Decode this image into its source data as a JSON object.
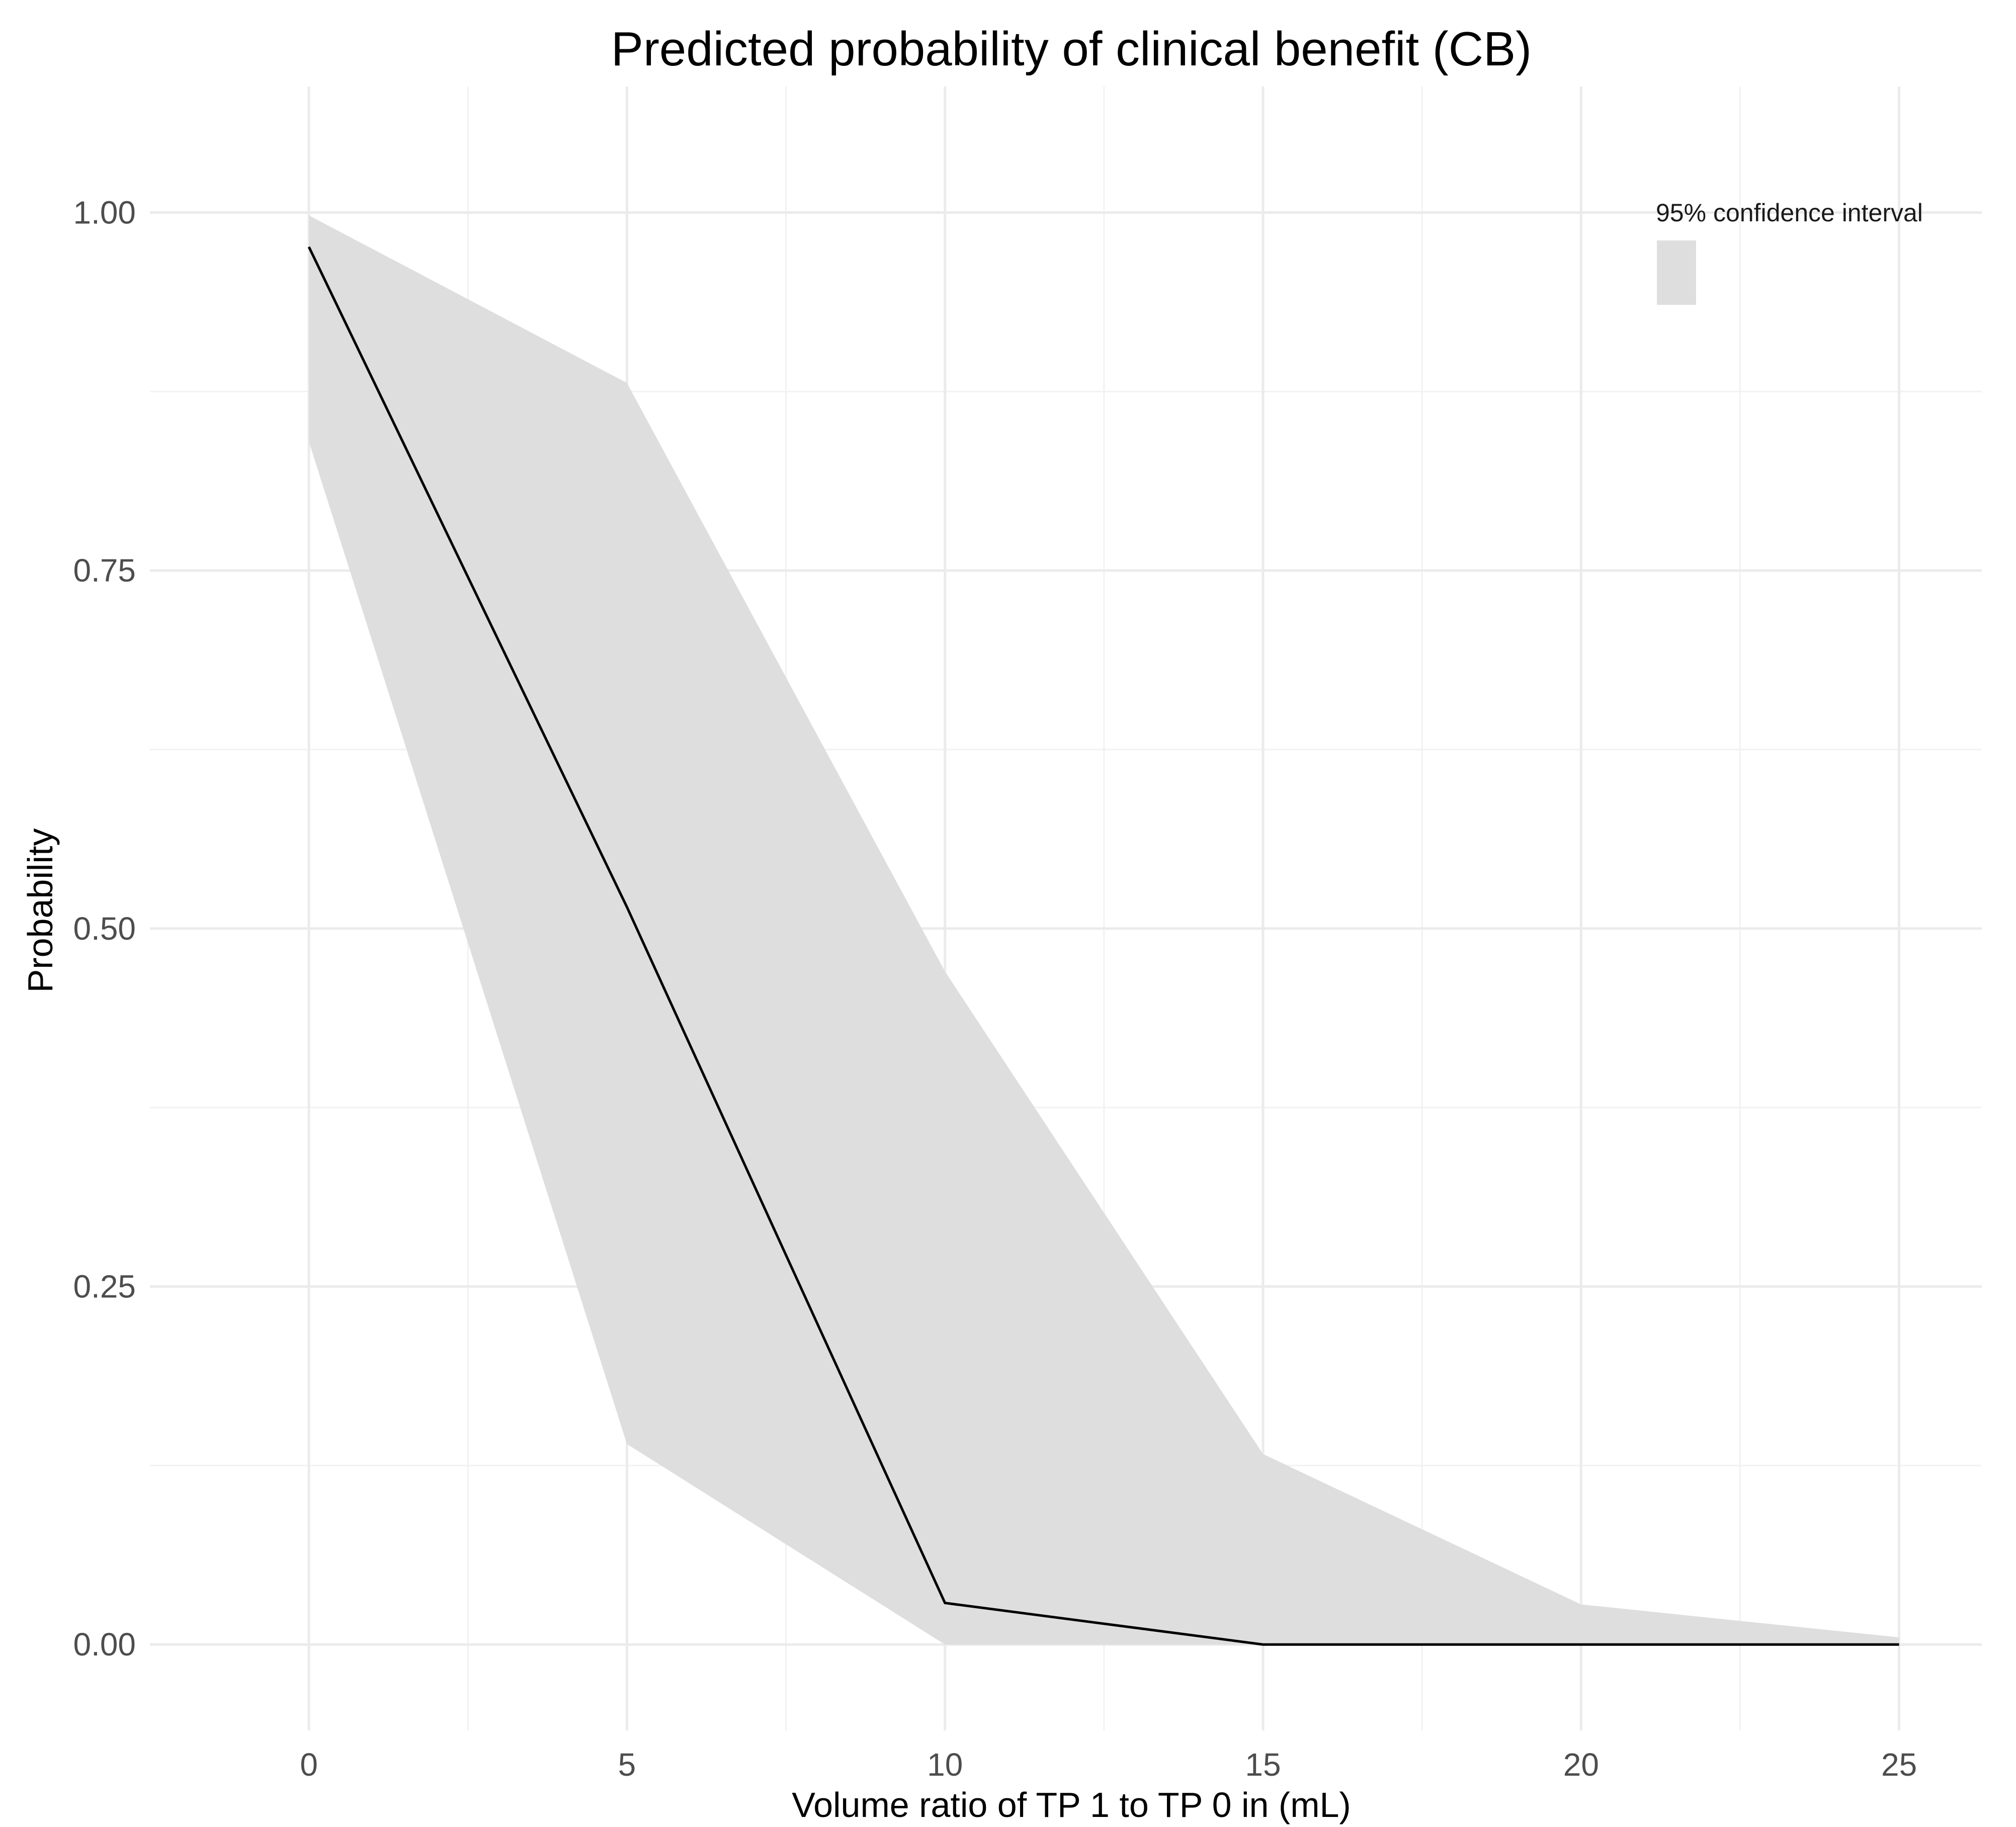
{
  "chart_data": {
    "type": "line",
    "title": "Predicted probability of clinical benefit (CB)",
    "xlabel": "Volume ratio of TP 1 to TP 0 in (mL)",
    "ylabel": "Probability",
    "xlim": [
      -2.5,
      26.3
    ],
    "ylim": [
      -0.06,
      1.088
    ],
    "x_ticks": [
      0,
      5,
      10,
      15,
      20,
      25
    ],
    "x_tick_labels": [
      "0",
      "5",
      "10",
      "15",
      "20",
      "25"
    ],
    "y_ticks": [
      0,
      0.25,
      0.5,
      0.75,
      1.0
    ],
    "y_tick_labels": [
      "0.00",
      "0.25",
      "0.50",
      "0.75",
      "1.00"
    ],
    "x_minor_ticks": [
      2.5,
      7.5,
      12.5,
      17.5,
      22.5
    ],
    "y_minor_ticks": [
      0.125,
      0.375,
      0.625,
      0.875
    ],
    "grid": true,
    "legend": {
      "title": "95% confidence interval",
      "position": "top-right",
      "key_color": "#dedede"
    },
    "series": [
      {
        "name": "Predicted probability",
        "color": "#000000",
        "x": [
          0,
          5,
          10,
          15,
          20,
          25
        ],
        "values": [
          0.976,
          0.515,
          0.029,
          0.0,
          0.0,
          0.0
        ]
      }
    ],
    "ribbon": {
      "name": "95% confidence interval",
      "color": "#dedede",
      "x": [
        0,
        5,
        10,
        15,
        20,
        25
      ],
      "lower": [
        0.84,
        0.14,
        0.0,
        0.0,
        0.0,
        0.0
      ],
      "upper": [
        0.998,
        0.881,
        0.47,
        0.133,
        0.028,
        0.005
      ]
    }
  }
}
